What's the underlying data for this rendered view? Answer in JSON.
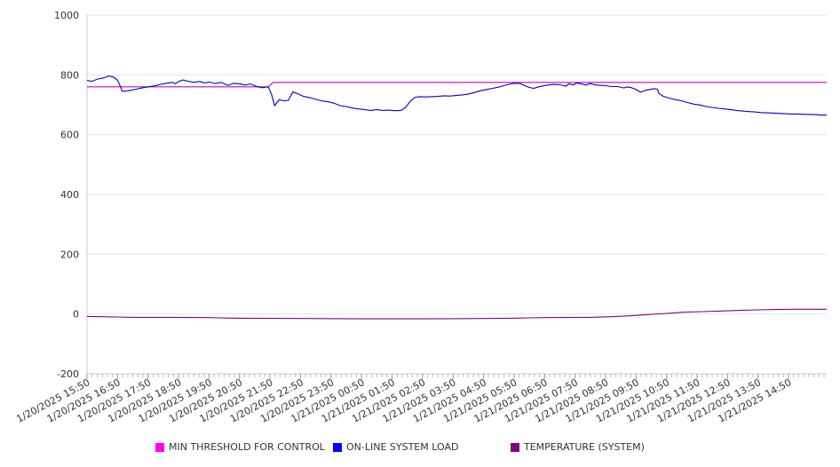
{
  "chart_data": {
    "type": "line",
    "title": "",
    "xlabel": "",
    "ylabel": "",
    "ylim": [
      -200,
      1000
    ],
    "yticks": [
      -200,
      0,
      200,
      400,
      600,
      800,
      1000
    ],
    "grid": true,
    "legend_position": "bottom",
    "x_start": "1/20/2025 15:50",
    "x_tick_labels": [
      "1/20/2025 15:50",
      "1/20/2025 16:50",
      "1/20/2025 17:50",
      "1/20/2025 18:50",
      "1/20/2025 19:50",
      "1/20/2025 20:50",
      "1/20/2025 21:50",
      "1/20/2025 22:50",
      "1/20/2025 23:50",
      "1/21/2025 00:50",
      "1/21/2025 01:50",
      "1/21/2025 02:50",
      "1/21/2025 03:50",
      "1/21/2025 04:50",
      "1/21/2025 05:50",
      "1/21/2025 06:50",
      "1/21/2025 07:50",
      "1/21/2025 08:50",
      "1/21/2025 09:50",
      "1/21/2025 10:50",
      "1/21/2025 11:50",
      "1/21/2025 12:50",
      "1/21/2025 13:50",
      "1/21/2025 14:50"
    ],
    "x_end_label": "",
    "series": [
      {
        "name": "MIN THRESHOLD FOR CONTROL",
        "color": "#cc00cc",
        "points": [
          [
            0,
            760
          ],
          [
            5.95,
            760
          ],
          [
            6.1,
            775
          ],
          [
            24.25,
            775
          ]
        ]
      },
      {
        "name": "ON-LINE SYSTEM LOAD",
        "color": "#0000cc",
        "points": [
          [
            0,
            782
          ],
          [
            0.15,
            778
          ],
          [
            0.35,
            786
          ],
          [
            0.55,
            790
          ],
          [
            0.7,
            796
          ],
          [
            0.85,
            794
          ],
          [
            1.0,
            782
          ],
          [
            1.1,
            760
          ],
          [
            1.15,
            745
          ],
          [
            1.35,
            747
          ],
          [
            1.6,
            752
          ],
          [
            1.8,
            756
          ],
          [
            2.0,
            760
          ],
          [
            2.2,
            763
          ],
          [
            2.4,
            768
          ],
          [
            2.6,
            772
          ],
          [
            2.8,
            775
          ],
          [
            2.9,
            770
          ],
          [
            3.0,
            778
          ],
          [
            3.15,
            783
          ],
          [
            3.3,
            779
          ],
          [
            3.5,
            775
          ],
          [
            3.7,
            778
          ],
          [
            3.85,
            773
          ],
          [
            4.0,
            776
          ],
          [
            4.2,
            771
          ],
          [
            4.4,
            775
          ],
          [
            4.55,
            768
          ],
          [
            4.65,
            765
          ],
          [
            4.8,
            772
          ],
          [
            5.0,
            770
          ],
          [
            5.2,
            766
          ],
          [
            5.35,
            770
          ],
          [
            5.5,
            764
          ],
          [
            5.6,
            760
          ],
          [
            5.75,
            757
          ],
          [
            5.9,
            760
          ],
          [
            5.95,
            758
          ],
          [
            6.05,
            735
          ],
          [
            6.15,
            697
          ],
          [
            6.3,
            717
          ],
          [
            6.45,
            713
          ],
          [
            6.6,
            715
          ],
          [
            6.75,
            743
          ],
          [
            6.9,
            737
          ],
          [
            7.1,
            728
          ],
          [
            7.3,
            724
          ],
          [
            7.5,
            718
          ],
          [
            7.7,
            713
          ],
          [
            7.9,
            710
          ],
          [
            8.1,
            705
          ],
          [
            8.3,
            697
          ],
          [
            8.5,
            694
          ],
          [
            8.7,
            689
          ],
          [
            8.9,
            686
          ],
          [
            9.1,
            684
          ],
          [
            9.3,
            681
          ],
          [
            9.5,
            684
          ],
          [
            9.7,
            681
          ],
          [
            9.9,
            682
          ],
          [
            10.1,
            680
          ],
          [
            10.3,
            681
          ],
          [
            10.45,
            692
          ],
          [
            10.6,
            712
          ],
          [
            10.75,
            725
          ],
          [
            10.9,
            727
          ],
          [
            11.1,
            726
          ],
          [
            11.3,
            727
          ],
          [
            11.5,
            728
          ],
          [
            11.7,
            730
          ],
          [
            11.9,
            729
          ],
          [
            12.1,
            731
          ],
          [
            12.3,
            733
          ],
          [
            12.5,
            736
          ],
          [
            12.7,
            741
          ],
          [
            12.9,
            747
          ],
          [
            13.1,
            751
          ],
          [
            13.3,
            755
          ],
          [
            13.5,
            759
          ],
          [
            13.7,
            765
          ],
          [
            13.9,
            770
          ],
          [
            14.05,
            772
          ],
          [
            14.2,
            771
          ],
          [
            14.35,
            764
          ],
          [
            14.5,
            758
          ],
          [
            14.65,
            755
          ],
          [
            14.8,
            760
          ],
          [
            14.95,
            763
          ],
          [
            15.1,
            766
          ],
          [
            15.3,
            768
          ],
          [
            15.5,
            767
          ],
          [
            15.7,
            762
          ],
          [
            15.8,
            770
          ],
          [
            15.95,
            766
          ],
          [
            16.05,
            773
          ],
          [
            16.2,
            770
          ],
          [
            16.35,
            766
          ],
          [
            16.5,
            771
          ],
          [
            16.65,
            767
          ],
          [
            16.8,
            765
          ],
          [
            17.0,
            764
          ],
          [
            17.2,
            761
          ],
          [
            17.4,
            761
          ],
          [
            17.6,
            756
          ],
          [
            17.7,
            760
          ],
          [
            17.85,
            757
          ],
          [
            18.0,
            751
          ],
          [
            18.15,
            742
          ],
          [
            18.3,
            748
          ],
          [
            18.45,
            751
          ],
          [
            18.6,
            754
          ],
          [
            18.7,
            752
          ],
          [
            18.75,
            738
          ],
          [
            18.9,
            728
          ],
          [
            19.1,
            722
          ],
          [
            19.3,
            717
          ],
          [
            19.5,
            713
          ],
          [
            19.7,
            707
          ],
          [
            19.9,
            702
          ],
          [
            20.1,
            699
          ],
          [
            20.3,
            694
          ],
          [
            20.5,
            691
          ],
          [
            20.7,
            688
          ],
          [
            20.9,
            686
          ],
          [
            21.1,
            684
          ],
          [
            21.3,
            681
          ],
          [
            21.5,
            679
          ],
          [
            21.7,
            677
          ],
          [
            21.9,
            676
          ],
          [
            22.1,
            674
          ],
          [
            22.3,
            673
          ],
          [
            22.5,
            672
          ],
          [
            22.7,
            671
          ],
          [
            22.9,
            670
          ],
          [
            23.1,
            669
          ],
          [
            23.3,
            669
          ],
          [
            23.5,
            668
          ],
          [
            23.7,
            668
          ],
          [
            23.9,
            667
          ],
          [
            24.1,
            665
          ],
          [
            24.25,
            666
          ]
        ]
      },
      {
        "name": "TEMPERATURE (SYSTEM)",
        "color": "#800080",
        "points": [
          [
            0,
            -8
          ],
          [
            0.5,
            -9
          ],
          [
            1.0,
            -10
          ],
          [
            1.5,
            -11
          ],
          [
            2.5,
            -11
          ],
          [
            4.0,
            -12
          ],
          [
            4.3,
            -13
          ],
          [
            5.0,
            -14
          ],
          [
            7.0,
            -15
          ],
          [
            9.0,
            -16
          ],
          [
            11.0,
            -16
          ],
          [
            13.0,
            -15
          ],
          [
            14.0,
            -14
          ],
          [
            14.5,
            -13
          ],
          [
            15.0,
            -12
          ],
          [
            16.5,
            -11
          ],
          [
            17.2,
            -9
          ],
          [
            17.8,
            -6
          ],
          [
            18.4,
            -2
          ],
          [
            19.0,
            2
          ],
          [
            19.6,
            6
          ],
          [
            20.2,
            8
          ],
          [
            20.8,
            10
          ],
          [
            21.4,
            12
          ],
          [
            22.0,
            14
          ],
          [
            22.6,
            15
          ],
          [
            23.2,
            16
          ],
          [
            24.25,
            16
          ]
        ]
      }
    ]
  }
}
